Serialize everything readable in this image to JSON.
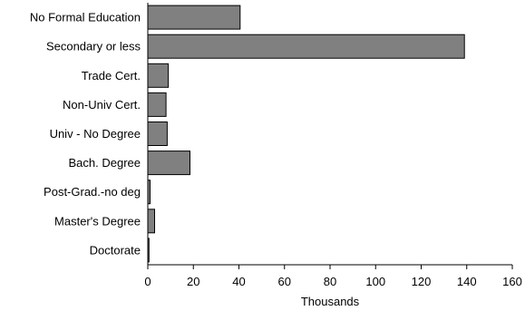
{
  "chart_data": {
    "type": "bar",
    "orientation": "horizontal",
    "categories": [
      "No Formal Education",
      "Secondary or less",
      "Trade Cert.",
      "Non-Univ Cert.",
      "Univ - No Degree",
      "Bach. Degree",
      "Post-Grad.-no deg",
      "Master's Degree",
      "Doctorate"
    ],
    "values": [
      40.5,
      139,
      9,
      8,
      8.5,
      18.5,
      1,
      3,
      0.5
    ],
    "xlabel": "Thousands",
    "ylabel": "",
    "xlim": [
      0,
      160
    ],
    "xticks": [
      0,
      20,
      40,
      60,
      80,
      100,
      120,
      140,
      160
    ],
    "grid": false,
    "colors": {
      "bar": "#808080",
      "bar_stroke": "#000000"
    }
  }
}
